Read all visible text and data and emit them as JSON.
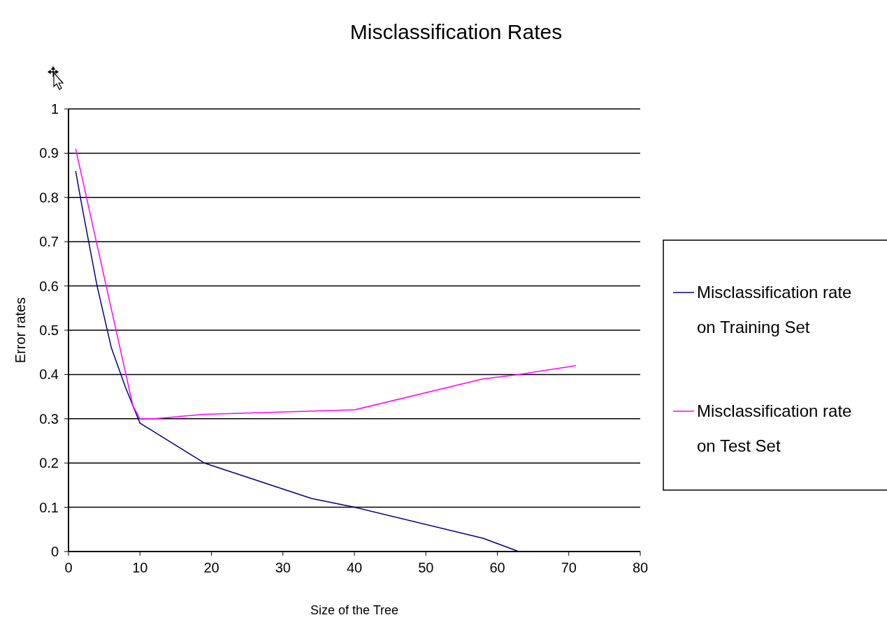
{
  "chart_data": {
    "type": "line",
    "title": "Misclassification Rates",
    "xlabel": "Size of the Tree",
    "ylabel": "Error rates",
    "xlim": [
      0,
      80
    ],
    "xticks": [
      0,
      10,
      20,
      30,
      40,
      50,
      60,
      70,
      80
    ],
    "ylim": [
      0,
      1
    ],
    "yticks": [
      0,
      0.1,
      0.2,
      0.3,
      0.4,
      0.5,
      0.6,
      0.7,
      0.8,
      0.9,
      1
    ],
    "grid": "y",
    "legend": "right",
    "marker": "none",
    "line_style": "solid",
    "series": [
      {
        "name": "Misclassification rate on Training Set",
        "color": "#000080",
        "x": [
          1,
          2,
          4,
          6,
          8,
          9,
          10,
          11,
          19,
          34,
          40,
          58,
          63
        ],
        "values": [
          0.86,
          0.77,
          0.6,
          0.46,
          0.37,
          0.33,
          0.29,
          0.28,
          0.2,
          0.12,
          0.1,
          0.03,
          0
        ]
      },
      {
        "name": "Misclassification rate on Test Set",
        "color": "#ff00ff",
        "x": [
          1,
          9,
          10,
          12,
          19,
          40,
          58,
          63,
          71
        ],
        "values": [
          0.91,
          0.33,
          0.3,
          0.3,
          0.31,
          0.32,
          0.39,
          0.4,
          0.42
        ]
      }
    ]
  }
}
